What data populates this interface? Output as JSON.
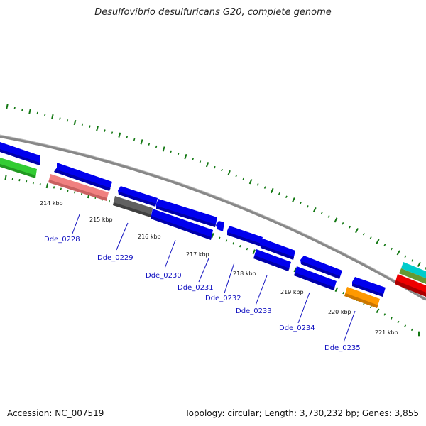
{
  "title": "Desulfovibrio desulfuricans G20, complete genome",
  "footer": {
    "accession": "Accession: NC_007519",
    "summary": "Topology: circular; Length: 3,730,232 bp; Genes: 3,855"
  },
  "colors": {
    "backbone": "#888888",
    "tick": "#117711",
    "gene_label": "#1010c0",
    "blue": "#0000ee",
    "pink": "#f08080",
    "gray": "#606060",
    "green": "#33cc33",
    "orange": "#ff9900",
    "red": "#ee0000",
    "cyan": "#00cccc",
    "olive": "#669933"
  },
  "axis": {
    "kbp_labels": [
      "214 kbp",
      "215 kbp",
      "216 kbp",
      "217 kbp",
      "218 kbp",
      "219 kbp",
      "220 kbp",
      "221 kbp"
    ]
  },
  "gene_labels": [
    "Dde_0228",
    "Dde_0229",
    "Dde_0230",
    "Dde_0231",
    "Dde_0232",
    "Dde_0233",
    "Dde_0234",
    "Dde_0235"
  ]
}
